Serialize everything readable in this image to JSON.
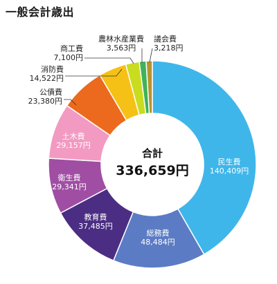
{
  "chart_data": {
    "type": "pie",
    "title": "一般会計歳出",
    "center": {
      "caption": "合計",
      "total": "336,659円"
    },
    "slices": [
      {
        "name": "民生費",
        "value": 140409,
        "value_label": "140,409円",
        "color": "#3fb6ea"
      },
      {
        "name": "総務費",
        "value": 48484,
        "value_label": "48,484円",
        "color": "#5b7cc4"
      },
      {
        "name": "教育費",
        "value": 37485,
        "value_label": "37,485円",
        "color": "#4b2e83"
      },
      {
        "name": "衛生費",
        "value": 29341,
        "value_label": "29,341円",
        "color": "#a04ea3"
      },
      {
        "name": "土木費",
        "value": 29157,
        "value_label": "29,157円",
        "color": "#f29ac2"
      },
      {
        "name": "公債費",
        "value": 23380,
        "value_label": "23,380円",
        "color": "#ec6a1d"
      },
      {
        "name": "消防費",
        "value": 14522,
        "value_label": "14,522円",
        "color": "#f6c117"
      },
      {
        "name": "商工費",
        "value": 7100,
        "value_label": "7,100円",
        "color": "#c9dc1f"
      },
      {
        "name": "農林水産業費",
        "value": 3563,
        "value_label": "3,563円",
        "color": "#3fb25a"
      },
      {
        "name": "議会費",
        "value": 3218,
        "value_label": "3,218円",
        "color": "#b8932f"
      }
    ]
  }
}
